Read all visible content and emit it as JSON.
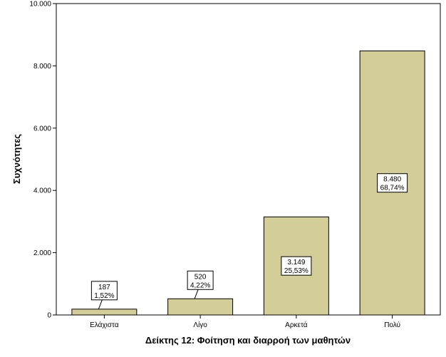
{
  "colors": {
    "bar_fill": "#d3ce97",
    "bar_stroke": "#000000",
    "plot_border": "#000000",
    "label_box_fill": "#ffffff"
  },
  "chart_data": {
    "type": "bar",
    "title": "",
    "xlabel": "Δείκτης 12: Φοίτηση και διαρροή των μαθητών",
    "ylabel": "Συχνότητες",
    "ylim": [
      0,
      10000
    ],
    "yticks": [
      0,
      2000,
      4000,
      6000,
      8000,
      10000
    ],
    "ytick_labels": [
      "0",
      "2.000",
      "4.000",
      "6.000",
      "8.000",
      "10.000"
    ],
    "categories": [
      "Ελάχιστα",
      "Λίγο",
      "Αρκετά",
      "Πολύ"
    ],
    "values": [
      187,
      520,
      3149,
      8480
    ],
    "data_labels": [
      {
        "count": "187",
        "percent": "1,52%"
      },
      {
        "count": "520",
        "percent": "4,22%"
      },
      {
        "count": "3.149",
        "percent": "25,53%"
      },
      {
        "count": "8.480",
        "percent": "68,74%"
      }
    ],
    "grid": false,
    "legend": "none"
  }
}
